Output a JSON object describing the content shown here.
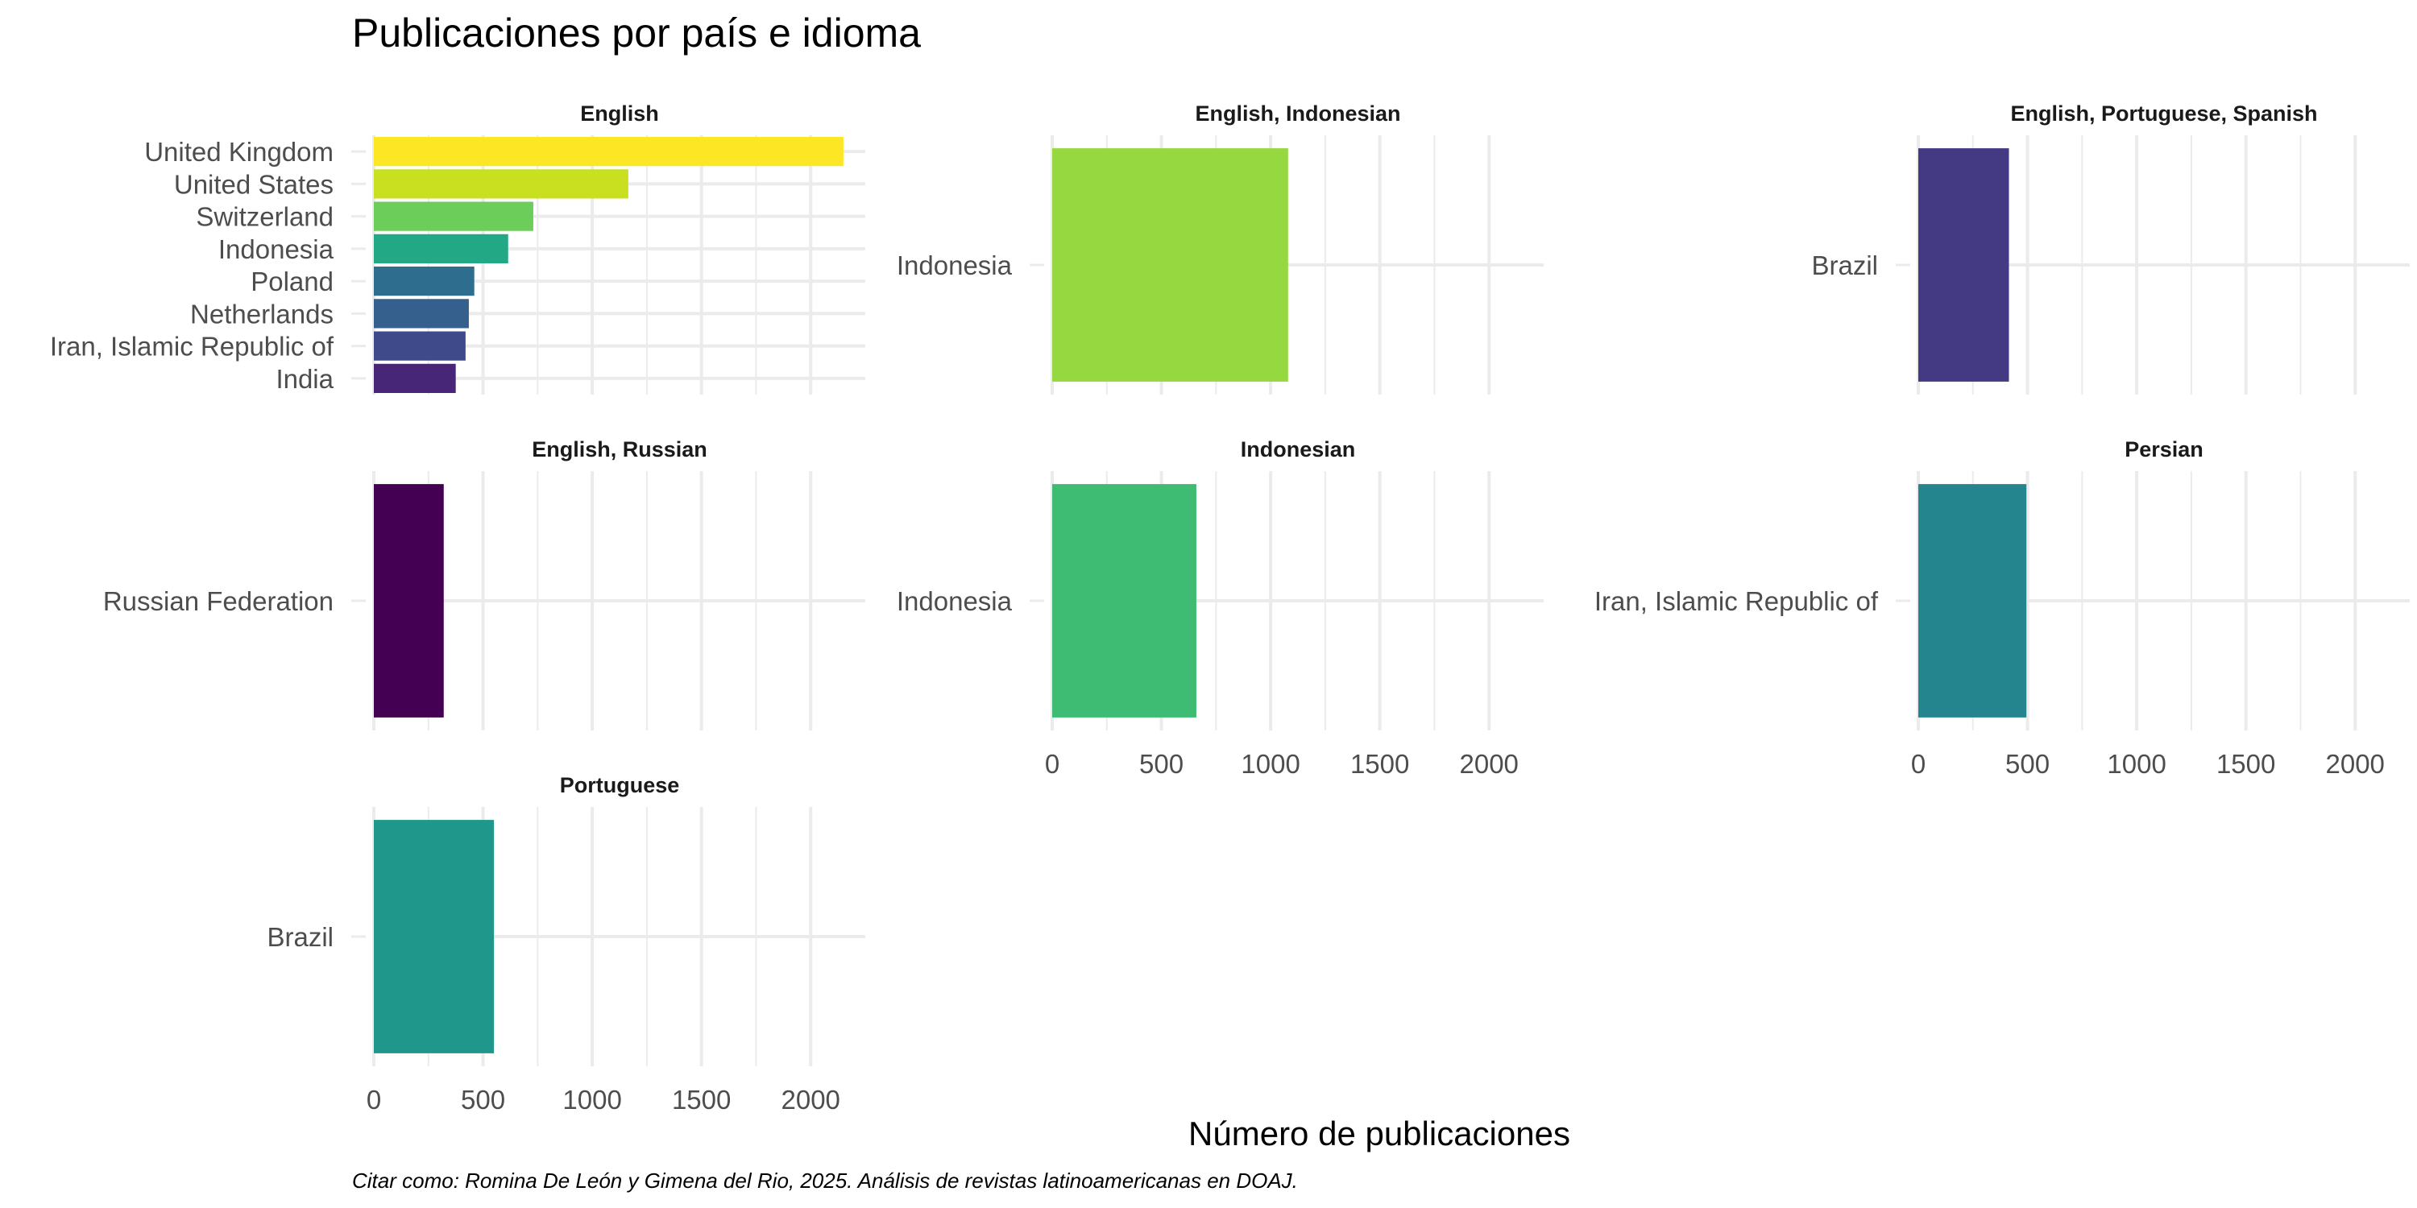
{
  "chart_data": {
    "type": "bar",
    "orientation": "horizontal",
    "title": "Publicaciones por país e idioma",
    "xlabel": "Número de publicaciones",
    "ylabel": "",
    "caption": "Citar como: Romina De León y Gimena del Rio, 2025. Análisis de revistas latinoamericanas en DOAJ.",
    "xlim": [
      0,
      2250
    ],
    "xticks": [
      0,
      500,
      1000,
      1500,
      2000
    ],
    "grid": true,
    "legend": "none",
    "facets": [
      {
        "name": "English",
        "categories": [
          "United Kingdom",
          "United States",
          "Switzerland",
          "Indonesia",
          "Poland",
          "Netherlands",
          "Iran, Islamic Republic of",
          "India"
        ],
        "values": [
          2150,
          1165,
          730,
          615,
          460,
          435,
          420,
          375
        ],
        "colors": [
          "#FDE725",
          "#C8E020",
          "#6CCD5A",
          "#22A884",
          "#2F6D8E",
          "#35608D",
          "#3E4A89",
          "#482677"
        ]
      },
      {
        "name": "English, Indonesian",
        "categories": [
          "Indonesia"
        ],
        "values": [
          1080
        ],
        "colors": [
          "#95D840"
        ]
      },
      {
        "name": "English, Portuguese, Spanish",
        "categories": [
          "Brazil"
        ],
        "values": [
          415
        ],
        "colors": [
          "#443A83"
        ]
      },
      {
        "name": "English, Russian",
        "categories": [
          "Russian Federation"
        ],
        "values": [
          320
        ],
        "colors": [
          "#440154"
        ]
      },
      {
        "name": "Indonesian",
        "categories": [
          "Indonesia"
        ],
        "values": [
          660
        ],
        "colors": [
          "#3FBC73"
        ]
      },
      {
        "name": "Persian",
        "categories": [
          "Iran, Islamic Republic of"
        ],
        "values": [
          495
        ],
        "colors": [
          "#25858E"
        ]
      },
      {
        "name": "Portuguese",
        "categories": [
          "Brazil"
        ],
        "values": [
          550
        ],
        "colors": [
          "#1F988B"
        ]
      }
    ]
  }
}
